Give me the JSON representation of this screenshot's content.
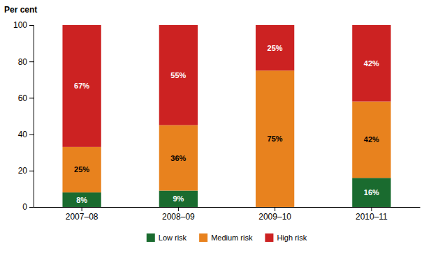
{
  "chart_data": {
    "type": "bar",
    "stacked": true,
    "categories": [
      "2007–08",
      "2008–09",
      "2009–10",
      "2010–11"
    ],
    "series": [
      {
        "name": "Low risk",
        "color": "#1a6b2f",
        "values": [
          8,
          9,
          0,
          16
        ],
        "value_labels": [
          "8%",
          "9%",
          null,
          "16%"
        ]
      },
      {
        "name": "Medium risk",
        "color": "#e8821e",
        "values": [
          25,
          36,
          75,
          42
        ],
        "value_labels": [
          "25%",
          "36%",
          "75%",
          "42%"
        ]
      },
      {
        "name": "High risk",
        "color": "#cc2222",
        "values": [
          67,
          55,
          25,
          42
        ],
        "value_labels": [
          "67%",
          "55%",
          "25%",
          "42%"
        ]
      }
    ],
    "ylabel": "Per cent",
    "ylim": [
      0,
      100
    ],
    "yticks": [
      0,
      20,
      40,
      60,
      80,
      100
    ],
    "grid": false,
    "legend": "bottom",
    "data_labels": true
  }
}
